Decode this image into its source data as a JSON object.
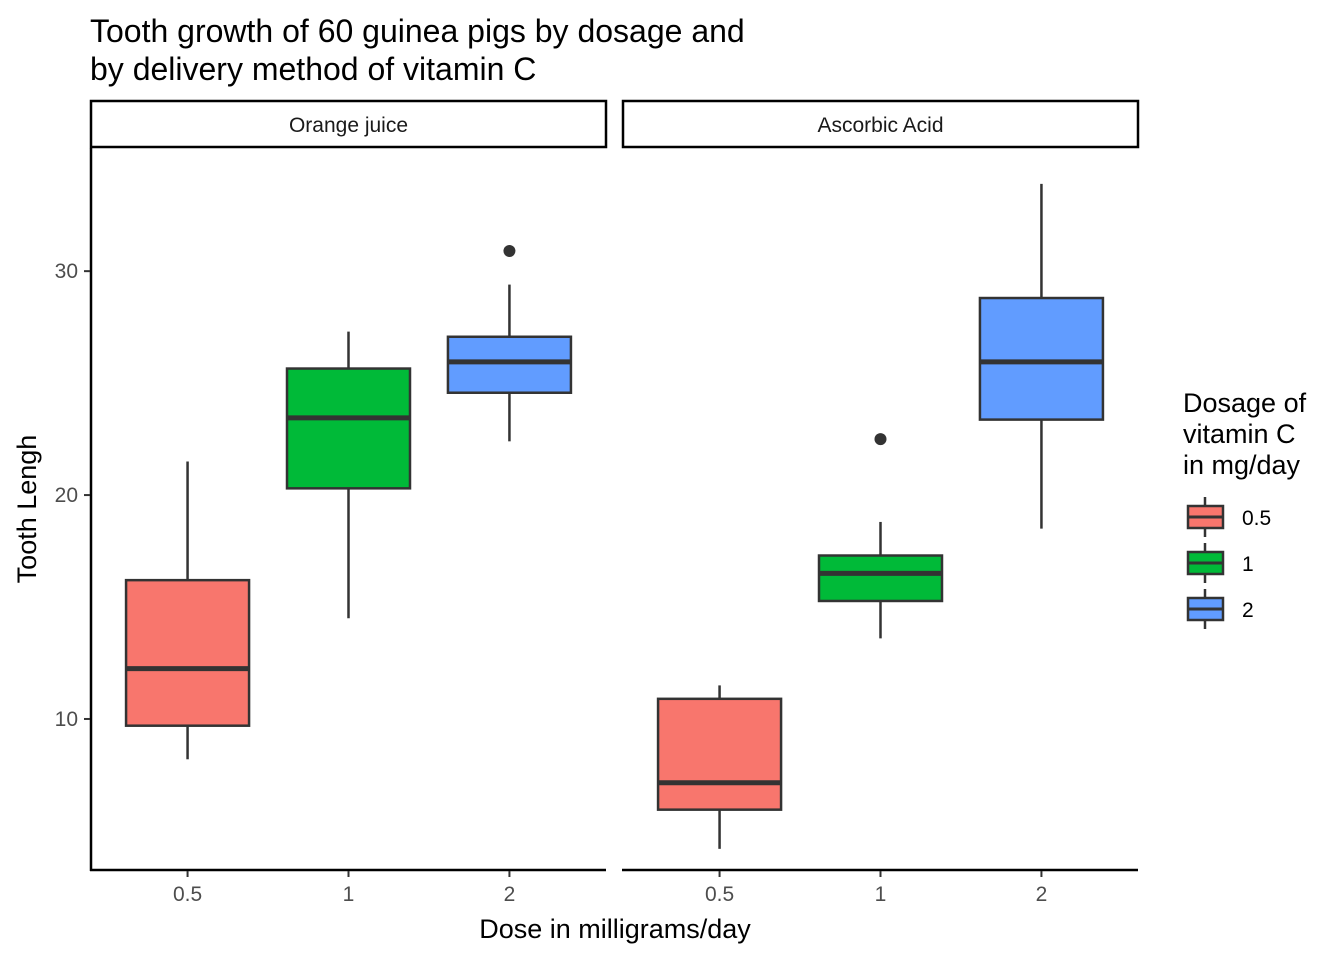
{
  "chart_data": {
    "type": "boxplot",
    "title": "Tooth growth of 60 guinea pigs by dosage and\nby delivery method of vitamin C",
    "xlabel": "Dose in milligrams/day",
    "ylabel": "Tooth Lengh",
    "ylim": [
      3.3,
      35.5
    ],
    "yticks": [
      10,
      20,
      30
    ],
    "categories": [
      "0.5",
      "1",
      "2"
    ],
    "grid": false,
    "legend": {
      "title": "Dosage of\nvitamin C\nin mg/day",
      "position": "right",
      "entries": [
        "0.5",
        "1",
        "2"
      ]
    },
    "colors": {
      "0.5": "#F8766D",
      "1": "#00BA38",
      "2": "#619CFF"
    },
    "facets": [
      {
        "label": "Orange juice",
        "boxes": [
          {
            "dose": "0.5",
            "whisker_low": 8.2,
            "q1": 9.7,
            "median": 12.25,
            "q3": 16.2,
            "whisker_high": 21.5,
            "outliers": []
          },
          {
            "dose": "1",
            "whisker_low": 14.5,
            "q1": 20.3,
            "median": 23.45,
            "q3": 25.65,
            "whisker_high": 27.3,
            "outliers": []
          },
          {
            "dose": "2",
            "whisker_low": 22.4,
            "q1": 24.57,
            "median": 25.95,
            "q3": 27.07,
            "whisker_high": 29.4,
            "outliers": [
              30.9
            ]
          }
        ]
      },
      {
        "label": "Ascorbic Acid",
        "boxes": [
          {
            "dose": "0.5",
            "whisker_low": 4.2,
            "q1": 5.95,
            "median": 7.15,
            "q3": 10.9,
            "whisker_high": 11.5,
            "outliers": []
          },
          {
            "dose": "1",
            "whisker_low": 13.6,
            "q1": 15.27,
            "median": 16.5,
            "q3": 17.3,
            "whisker_high": 18.8,
            "outliers": [
              22.5
            ]
          },
          {
            "dose": "2",
            "whisker_low": 18.5,
            "q1": 23.37,
            "median": 25.95,
            "q3": 28.8,
            "whisker_high": 33.9,
            "outliers": []
          }
        ]
      }
    ]
  }
}
